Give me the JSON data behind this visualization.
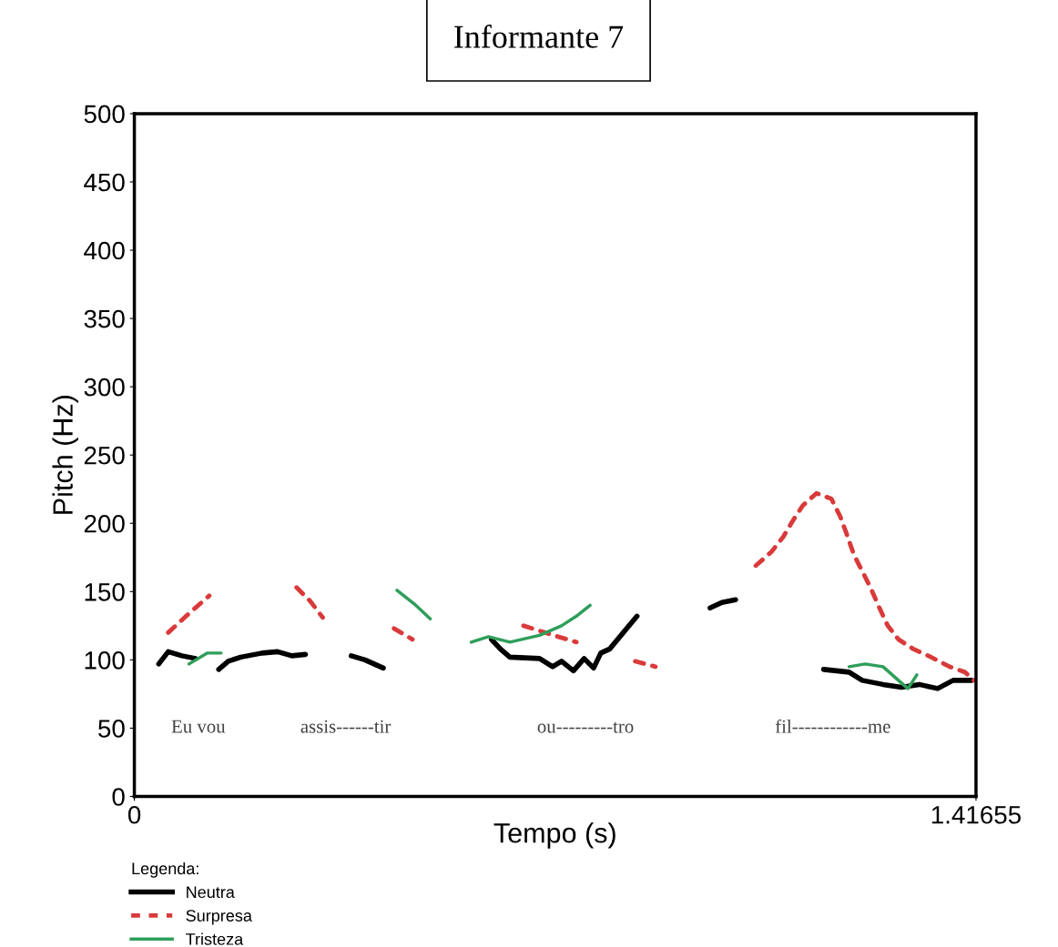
{
  "chart_data": {
    "type": "line",
    "title": "Informante 7",
    "xlabel": "Tempo (s)",
    "ylabel": "Pitch (Hz)",
    "legend_title": "Legenda:",
    "xlim": [
      0,
      1.41655
    ],
    "xticks": [
      0,
      1.41655
    ],
    "ylim": [
      0,
      500
    ],
    "yticks": [
      0,
      50,
      100,
      150,
      200,
      250,
      300,
      350,
      400,
      450,
      500
    ],
    "grid": false,
    "legend": "bottom left",
    "marker": "none",
    "series": [
      {
        "name": "Neutra",
        "color": "#000000",
        "line_style": "solid",
        "x": [
          0.041,
          0.057,
          0.08,
          0.103,
          0.12,
          0.142,
          0.158,
          0.179,
          0.215,
          0.241,
          0.265,
          0.288,
          0.33,
          0.365,
          0.388,
          0.419,
          0.5,
          0.601,
          0.616,
          0.632,
          0.682,
          0.704,
          0.719,
          0.739,
          0.757,
          0.773,
          0.785,
          0.8,
          0.846,
          0.9,
          0.969,
          0.989,
          1.012,
          1.1,
          1.16,
          1.203,
          1.225,
          1.26,
          1.291,
          1.321,
          1.352,
          1.378,
          1.409
        ],
        "values": [
          97,
          106,
          103,
          101,
          null,
          93,
          99,
          102,
          105,
          106,
          103,
          104,
          null,
          103,
          100,
          94,
          null,
          115,
          108,
          102,
          101,
          95,
          99,
          92,
          101,
          94,
          105,
          108,
          132,
          null,
          138,
          142,
          144,
          null,
          93,
          91,
          85,
          82,
          80,
          82,
          79,
          85,
          85
        ]
      },
      {
        "name": "Surpresa",
        "color": "#d93a3a",
        "line_style": "dashed",
        "x": [
          0.057,
          0.087,
          0.126,
          0.2,
          0.273,
          0.296,
          0.317,
          0.38,
          0.437,
          0.468,
          0.55,
          0.655,
          0.713,
          0.744,
          0.8,
          0.843,
          0.877,
          0.95,
          1.046,
          1.072,
          1.092,
          1.107,
          1.125,
          1.148,
          1.173,
          1.188,
          1.199,
          1.211,
          1.225,
          1.24,
          1.253,
          1.268,
          1.286,
          1.311,
          1.341,
          1.372,
          1.398,
          1.413
        ],
        "values": [
          120,
          132,
          147,
          null,
          153,
          143,
          131,
          null,
          123,
          115,
          null,
          125,
          117,
          113,
          null,
          99,
          95,
          null,
          169,
          179,
          190,
          201,
          213,
          222,
          218,
          205,
          192,
          177,
          165,
          152,
          139,
          125,
          115,
          108,
          102,
          95,
          91,
          85
        ]
      },
      {
        "name": "Tristeza",
        "color": "#2e9e5a",
        "line_style": "solid",
        "x": [
          0.092,
          0.123,
          0.146,
          0.3,
          0.442,
          0.471,
          0.498,
          0.53,
          0.567,
          0.596,
          0.632,
          0.682,
          0.719,
          0.744,
          0.767,
          1.0,
          1.203,
          1.23,
          1.26,
          1.286,
          1.302,
          1.317
        ],
        "values": [
          97,
          105,
          105,
          null,
          151,
          141,
          130,
          null,
          113,
          117,
          113,
          118,
          125,
          132,
          140,
          null,
          95,
          97,
          95,
          85,
          79,
          89
        ]
      }
    ],
    "annotations": [
      "Eu vou",
      "assis------tir",
      "ou---------tro",
      "fil------------me"
    ]
  }
}
